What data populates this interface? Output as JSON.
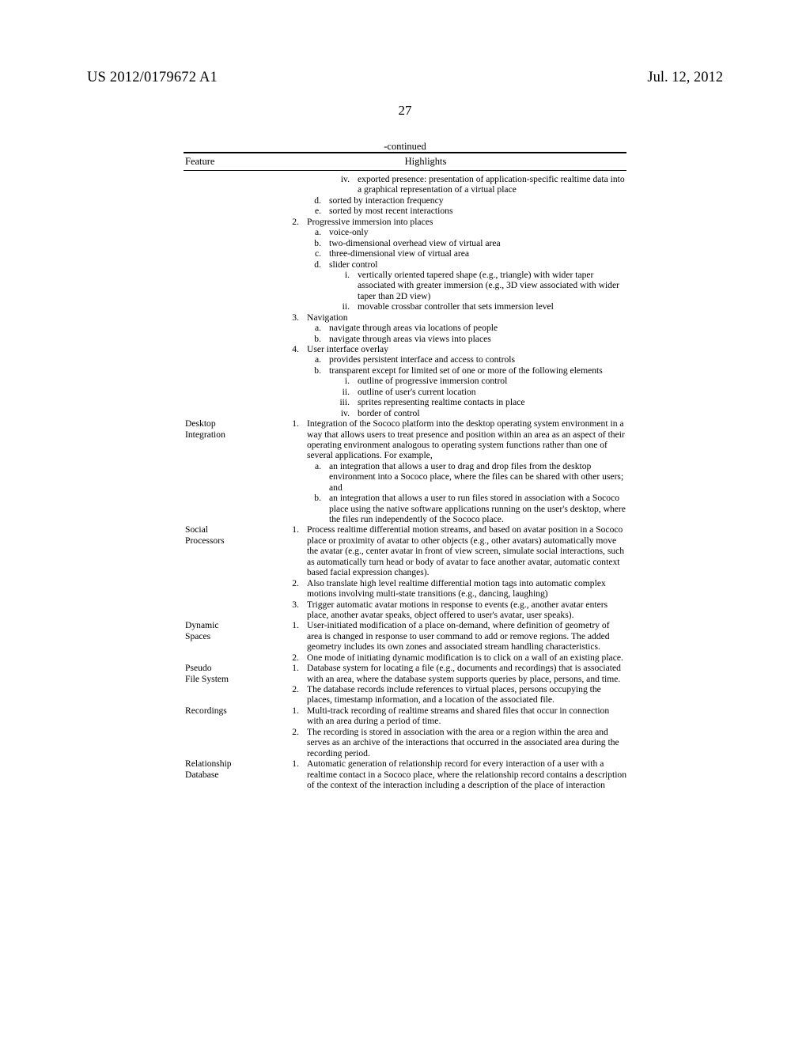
{
  "header": {
    "pub_number": "US 2012/0179672 A1",
    "date": "Jul. 12, 2012",
    "page": "27",
    "continued": "-continued"
  },
  "table": {
    "col_feature": "Feature",
    "col_highlights": "Highlights"
  },
  "sec0": {
    "iv": "iv.",
    "iv_t": "exported presence: presentation of application-specific realtime data into a graphical representation of a virtual place",
    "d": "d.",
    "d_t": "sorted by interaction frequency",
    "e": "e.",
    "e_t": "sorted by most recent interactions",
    "n2": "2.",
    "n2_t": "Progressive immersion into places",
    "a2": "a.",
    "a2_t": "voice-only",
    "b2": "b.",
    "b2_t": "two-dimensional overhead view of virtual area",
    "c2": "c.",
    "c2_t": "three-dimensional view of virtual area",
    "d2": "d.",
    "d2_t": "slider control",
    "i2": "i.",
    "i2_t": "vertically oriented tapered shape (e.g., triangle) with wider taper associated with greater immersion (e.g., 3D view associated with wider taper than 2D view)",
    "ii2": "ii.",
    "ii2_t": "movable crossbar controller that sets immersion level",
    "n3": "3.",
    "n3_t": "Navigation",
    "a3": "a.",
    "a3_t": "navigate through areas via locations of people",
    "b3": "b.",
    "b3_t": "navigate through areas via views into places",
    "n4": "4.",
    "n4_t": "User interface overlay",
    "a4": "a.",
    "a4_t": "provides persistent interface and access to controls",
    "b4": "b.",
    "b4_t": "transparent except for limited set of one or more of the following elements",
    "i4": "i.",
    "i4_t": "outline of progressive immersion control",
    "ii4": "ii.",
    "ii4_t": "outline of user's current location",
    "iii4": "iii.",
    "iii4_t": "sprites representing realtime contacts in place",
    "iv4": "iv.",
    "iv4_t": "border of control"
  },
  "desktop": {
    "label1": "Desktop",
    "label2": "Integration",
    "n1": "1.",
    "n1_t": "Integration of the Sococo platform into the desktop operating system environment in a way that allows users to treat presence and position within an area as an aspect of their operating environment analogous to operating system functions rather than one of several applications. For example,",
    "a": "a.",
    "a_t": "an integration that allows a user to drag and drop files from the desktop environment into a Sococo place, where the files can be shared with other users; and",
    "b": "b.",
    "b_t": "an integration that allows a user to run files stored in association with a Sococo place using the native software applications running on the user's desktop, where the files run independently of the Sococo place."
  },
  "social": {
    "label1": "Social",
    "label2": "Processors",
    "n1": "1.",
    "n1_t": "Process realtime differential motion streams, and based on avatar position in a Sococo place or proximity of avatar to other objects (e.g., other avatars) automatically move the avatar (e.g., center avatar in front of view screen, simulate social interactions, such as automatically turn head or body of avatar to face another avatar, automatic context based facial expression changes).",
    "n2": "2.",
    "n2_t": "Also translate high level realtime differential motion tags into automatic complex motions involving multi-state transitions (e.g., dancing, laughing)",
    "n3": "3.",
    "n3_t": "Trigger automatic avatar motions in response to events (e.g., another avatar enters place, another avatar speaks, object offered to user's avatar, user speaks)."
  },
  "dynamic": {
    "label1": "Dynamic",
    "label2": "Spaces",
    "n1": "1.",
    "n1_t": "User-initiated modification of a place on-demand, where definition of geometry of area is changed in response to user command to add or remove regions. The added geometry includes its own zones and associated stream handling characteristics.",
    "n2": "2.",
    "n2_t": "One mode of initiating dynamic modification is to click on a wall of an existing place."
  },
  "pseudo": {
    "label1": "Pseudo",
    "label2": "File System",
    "n1": "1.",
    "n1_t": "Database system for locating a file (e.g., documents and recordings) that is associated with an area, where the database system supports queries by place, persons, and time.",
    "n2": "2.",
    "n2_t": "The database records include references to virtual places, persons occupying the places, timestamp information, and a location of the associated file."
  },
  "recordings": {
    "label1": "Recordings",
    "n1": "1.",
    "n1_t": "Multi-track recording of realtime streams and shared files that occur in connection with an area during a period of time.",
    "n2": "2.",
    "n2_t": "The recording is stored in association with the area or a region within the area and serves as an archive of the interactions that occurred in the associated area during the recording period."
  },
  "relationship": {
    "label1": "Relationship",
    "label2": "Database",
    "n1": "1.",
    "n1_t": "Automatic generation of relationship record for every interaction of a user with a realtime contact in a Sococo place, where the relationship record contains a description of the context of the interaction including a description of the place of interaction"
  }
}
